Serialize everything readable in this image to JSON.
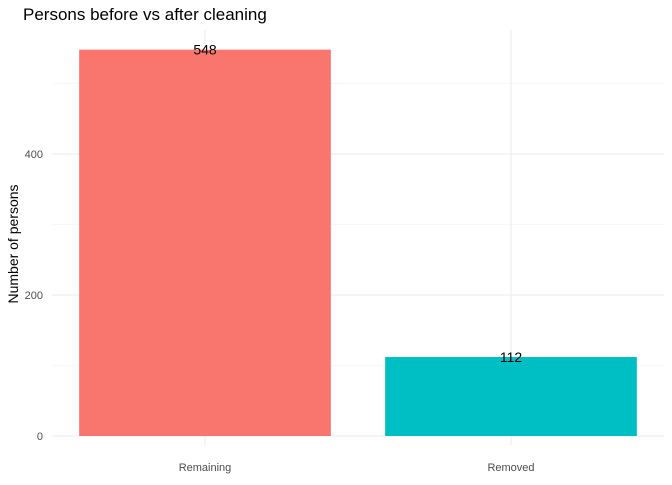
{
  "chart_data": {
    "type": "bar",
    "title": "Persons before vs after cleaning",
    "xlabel": "",
    "ylabel": "Number of persons",
    "categories": [
      "Remaining",
      "Removed"
    ],
    "values": [
      548,
      112
    ],
    "data_labels": [
      "548",
      "112"
    ],
    "colors": [
      "#f8766d",
      "#00bfc4"
    ],
    "ylim": [
      0,
      575.4
    ],
    "yticks": [
      0,
      200,
      400
    ],
    "ytick_labels": [
      "0",
      "200",
      "400"
    ],
    "grid": true,
    "legend": "none"
  }
}
